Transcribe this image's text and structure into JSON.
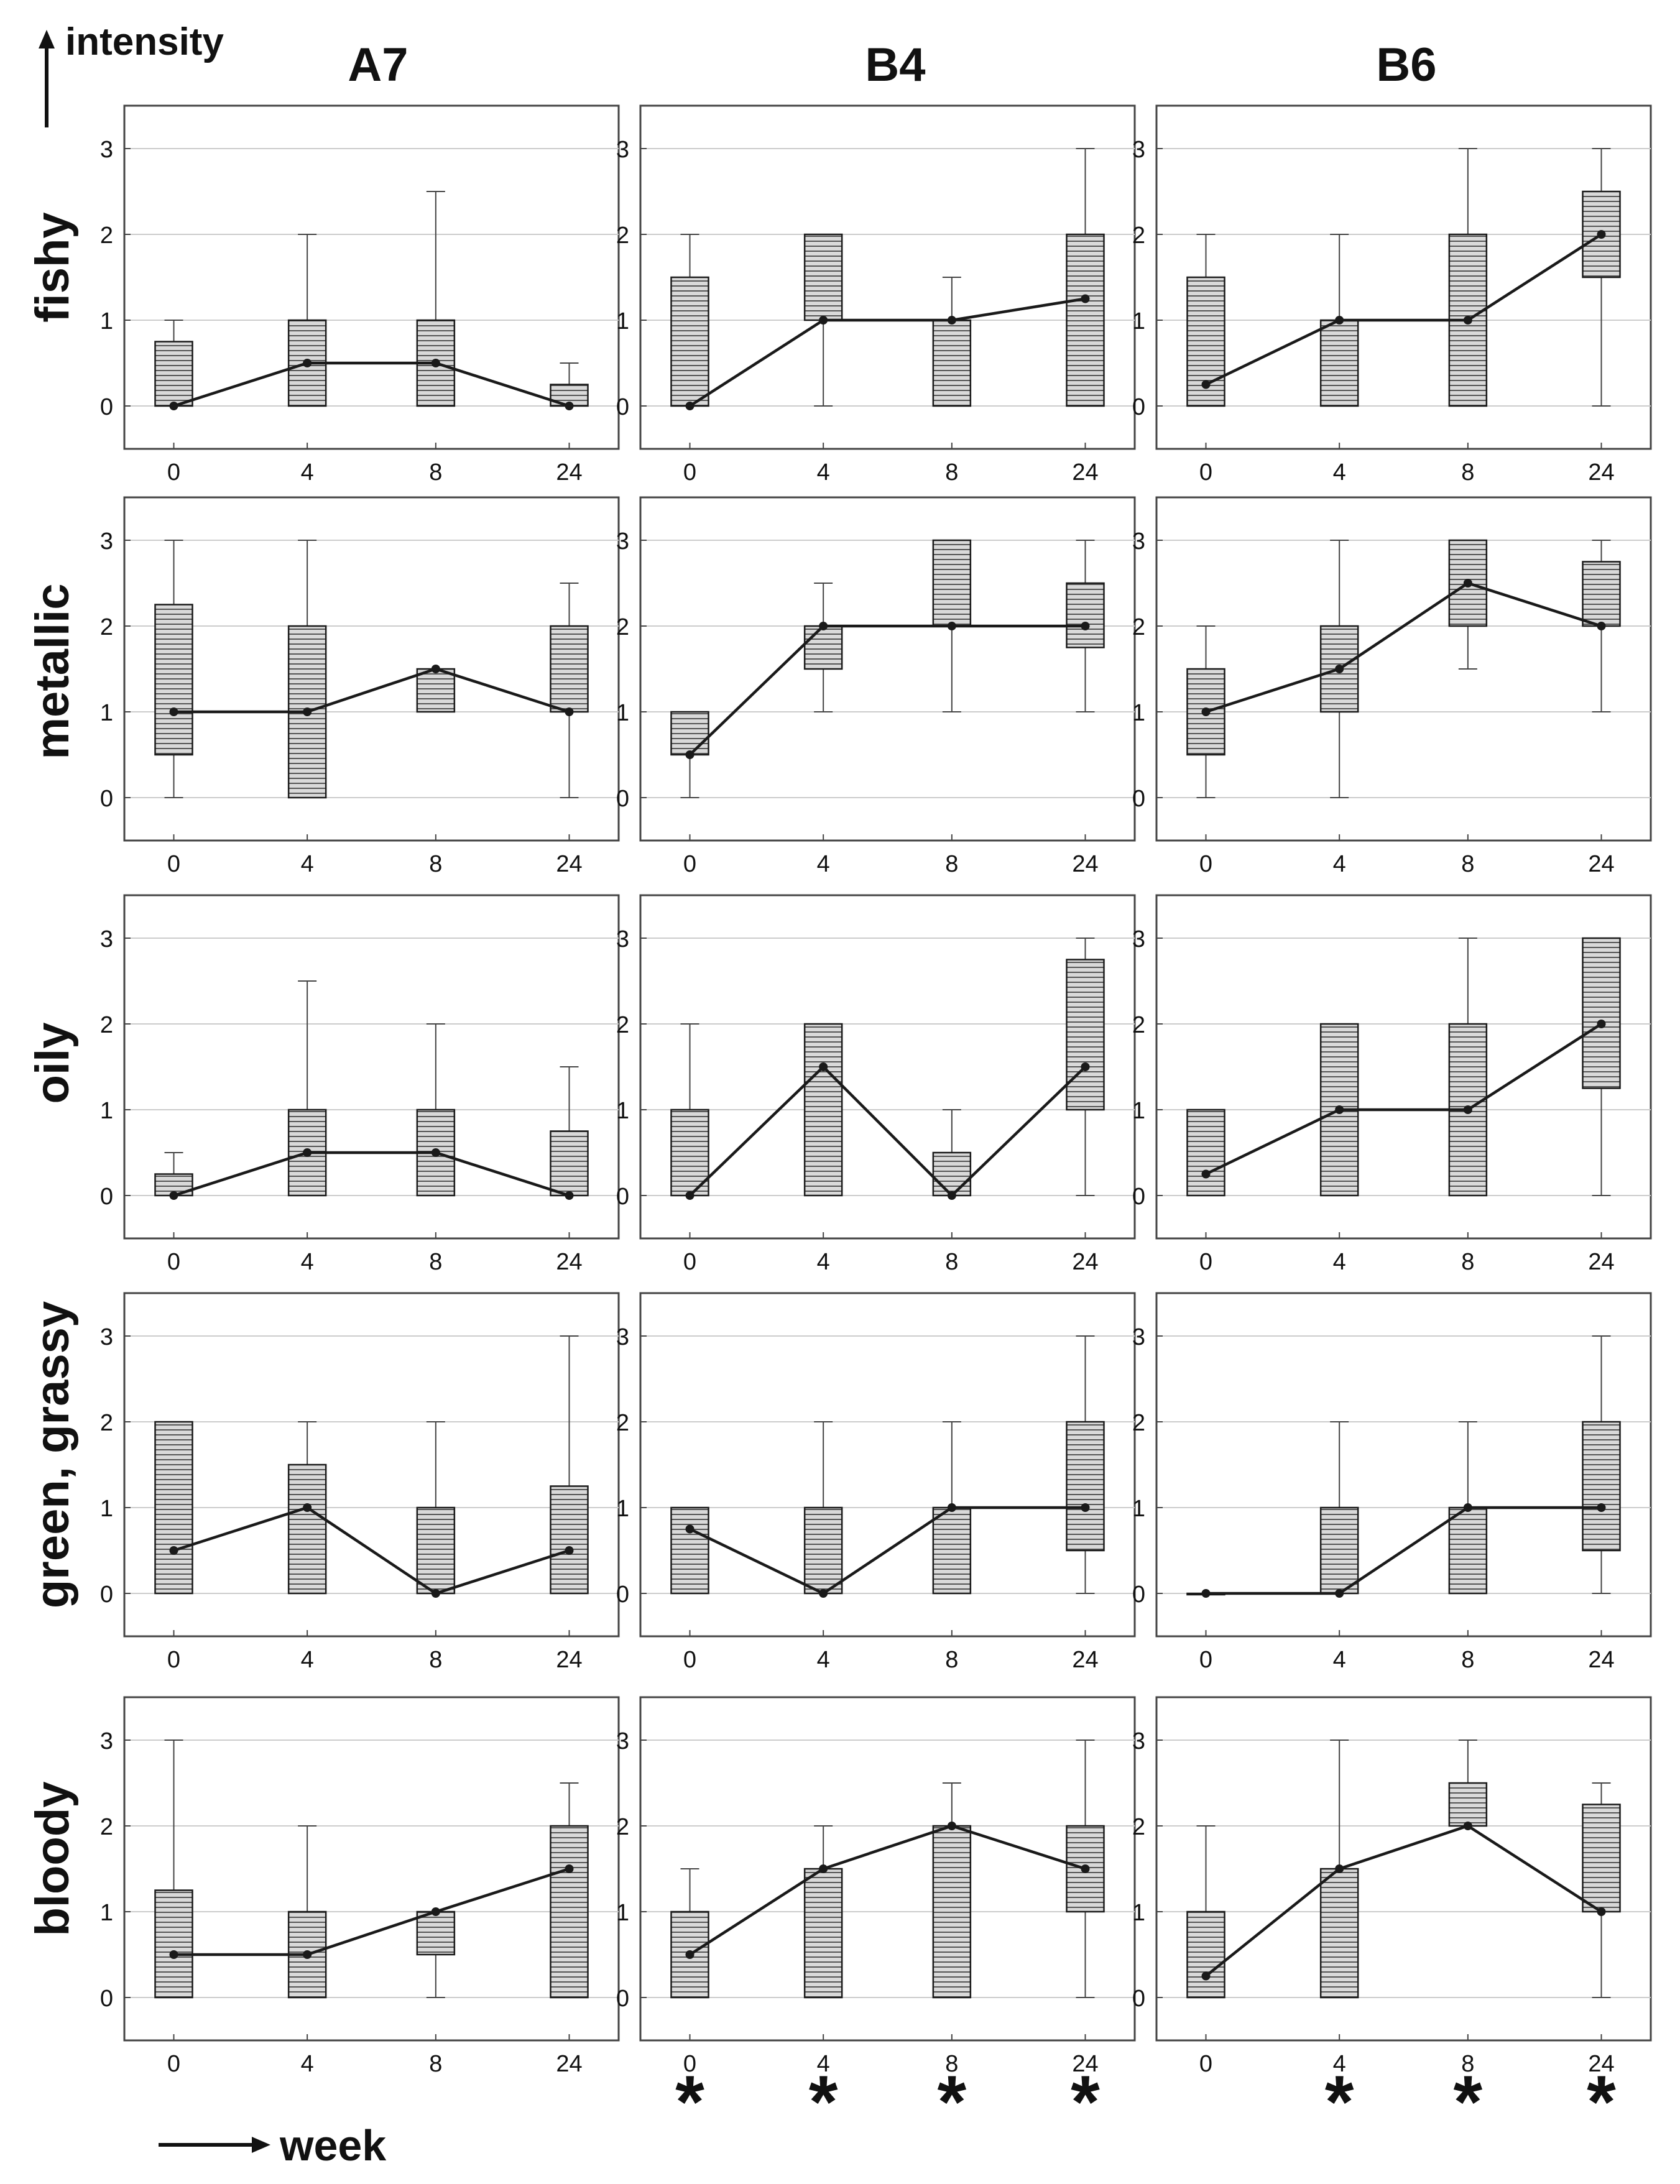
{
  "figure": {
    "y_axis_label": "intensity",
    "x_axis_label": "week",
    "significance_marker": "*"
  },
  "columns": [
    "A7",
    "B4",
    "B6"
  ],
  "rows": [
    "fishy",
    "metallic",
    "oily",
    "green, grassy",
    "bloody"
  ],
  "colors": {
    "frame": "#444444",
    "grid": "#cccccc",
    "box_fill": "#d9d9d9",
    "hatch": "#555555",
    "line": "#1a1a1a",
    "text": "#111111"
  },
  "chart_data": {
    "type": "box",
    "description_of_marks": "Each panel: boxes (quartiles), whiskers (min/max), dots joined by a line (median) per week",
    "categories": [
      "0",
      "4",
      "8",
      "24"
    ],
    "ylim": [
      -0.5,
      3.5
    ],
    "yticks": [
      0,
      1,
      2,
      3
    ],
    "xlabel": "week",
    "ylabel": "intensity",
    "panels": [
      {
        "row": "fishy",
        "column": "A7",
        "boxes": [
          {
            "week": "0",
            "q1": 0,
            "q3": 0.75,
            "min": 0,
            "max": 1,
            "median": 0
          },
          {
            "week": "4",
            "q1": 0,
            "q3": 1,
            "min": 0,
            "max": 2,
            "median": 0.5
          },
          {
            "week": "8",
            "q1": 0,
            "q3": 1,
            "min": 0,
            "max": 2.5,
            "median": 0.5
          },
          {
            "week": "24",
            "q1": 0,
            "q3": 0.25,
            "min": 0,
            "max": 0.5,
            "median": 0
          }
        ]
      },
      {
        "row": "fishy",
        "column": "B4",
        "boxes": [
          {
            "week": "0",
            "q1": 0,
            "q3": 1.5,
            "min": 0,
            "max": 2,
            "median": 0
          },
          {
            "week": "4",
            "q1": 1,
            "q3": 2,
            "min": 0,
            "max": 2,
            "median": 1
          },
          {
            "week": "8",
            "q1": 0,
            "q3": 1,
            "min": 0,
            "max": 1.5,
            "median": 1
          },
          {
            "week": "24",
            "q1": 0,
            "q3": 2,
            "min": 0,
            "max": 3,
            "median": 1.25
          }
        ]
      },
      {
        "row": "fishy",
        "column": "B6",
        "boxes": [
          {
            "week": "0",
            "q1": 0,
            "q3": 1.5,
            "min": 0,
            "max": 2,
            "median": 0.25
          },
          {
            "week": "4",
            "q1": 0,
            "q3": 1,
            "min": 0,
            "max": 2,
            "median": 1
          },
          {
            "week": "8",
            "q1": 0,
            "q3": 2,
            "min": 0,
            "max": 3,
            "median": 1
          },
          {
            "week": "24",
            "q1": 1.5,
            "q3": 2.5,
            "min": 0,
            "max": 3,
            "median": 2
          }
        ]
      },
      {
        "row": "metallic",
        "column": "A7",
        "boxes": [
          {
            "week": "0",
            "q1": 0.5,
            "q3": 2.25,
            "min": 0,
            "max": 3,
            "median": 1
          },
          {
            "week": "4",
            "q1": 0,
            "q3": 2,
            "min": 0,
            "max": 3,
            "median": 1
          },
          {
            "week": "8",
            "q1": 1,
            "q3": 1.5,
            "min": 1,
            "max": 1.5,
            "median": 1.5
          },
          {
            "week": "24",
            "q1": 1,
            "q3": 2,
            "min": 0,
            "max": 2.5,
            "median": 1
          }
        ]
      },
      {
        "row": "metallic",
        "column": "B4",
        "boxes": [
          {
            "week": "0",
            "q1": 0.5,
            "q3": 1,
            "min": 0,
            "max": 1,
            "median": 0.5
          },
          {
            "week": "4",
            "q1": 1.5,
            "q3": 2,
            "min": 1,
            "max": 2.5,
            "median": 2
          },
          {
            "week": "8",
            "q1": 2,
            "q3": 3,
            "min": 1,
            "max": 3,
            "median": 2
          },
          {
            "week": "24",
            "q1": 1.75,
            "q3": 2.5,
            "min": 1,
            "max": 3,
            "median": 2
          }
        ]
      },
      {
        "row": "metallic",
        "column": "B6",
        "boxes": [
          {
            "week": "0",
            "q1": 0.5,
            "q3": 1.5,
            "min": 0,
            "max": 2,
            "median": 1
          },
          {
            "week": "4",
            "q1": 1,
            "q3": 2,
            "min": 0,
            "max": 3,
            "median": 1.5
          },
          {
            "week": "8",
            "q1": 2,
            "q3": 3,
            "min": 1.5,
            "max": 3,
            "median": 2.5
          },
          {
            "week": "24",
            "q1": 2,
            "q3": 2.75,
            "min": 1,
            "max": 3,
            "median": 2
          }
        ]
      },
      {
        "row": "oily",
        "column": "A7",
        "boxes": [
          {
            "week": "0",
            "q1": 0,
            "q3": 0.25,
            "min": 0,
            "max": 0.5,
            "median": 0
          },
          {
            "week": "4",
            "q1": 0,
            "q3": 1,
            "min": 0,
            "max": 2.5,
            "median": 0.5
          },
          {
            "week": "8",
            "q1": 0,
            "q3": 1,
            "min": 0,
            "max": 2,
            "median": 0.5
          },
          {
            "week": "24",
            "q1": 0,
            "q3": 0.75,
            "min": 0,
            "max": 1.5,
            "median": 0
          }
        ]
      },
      {
        "row": "oily",
        "column": "B4",
        "boxes": [
          {
            "week": "0",
            "q1": 0,
            "q3": 1,
            "min": 0,
            "max": 2,
            "median": 0
          },
          {
            "week": "4",
            "q1": 0,
            "q3": 2,
            "min": 0,
            "max": 2,
            "median": 1.5
          },
          {
            "week": "8",
            "q1": 0,
            "q3": 0.5,
            "min": 0,
            "max": 1,
            "median": 0
          },
          {
            "week": "24",
            "q1": 1,
            "q3": 2.75,
            "min": 0,
            "max": 3,
            "median": 1.5
          }
        ]
      },
      {
        "row": "oily",
        "column": "B6",
        "boxes": [
          {
            "week": "0",
            "q1": 0,
            "q3": 1,
            "min": 0,
            "max": 1,
            "median": 0.25
          },
          {
            "week": "4",
            "q1": 0,
            "q3": 2,
            "min": 0,
            "max": 2,
            "median": 1
          },
          {
            "week": "8",
            "q1": 0,
            "q3": 2,
            "min": 0,
            "max": 3,
            "median": 1
          },
          {
            "week": "24",
            "q1": 1.25,
            "q3": 3,
            "min": 0,
            "max": 3,
            "median": 2
          }
        ]
      },
      {
        "row": "green, grassy",
        "column": "A7",
        "boxes": [
          {
            "week": "0",
            "q1": 0,
            "q3": 2,
            "min": 0,
            "max": 2,
            "median": 0.5
          },
          {
            "week": "4",
            "q1": 0,
            "q3": 1.5,
            "min": 0,
            "max": 2,
            "median": 1
          },
          {
            "week": "8",
            "q1": 0,
            "q3": 1,
            "min": 0,
            "max": 2,
            "median": 0
          },
          {
            "week": "24",
            "q1": 0,
            "q3": 1.25,
            "min": 0,
            "max": 3,
            "median": 0.5
          }
        ]
      },
      {
        "row": "green, grassy",
        "column": "B4",
        "boxes": [
          {
            "week": "0",
            "q1": 0,
            "q3": 1,
            "min": 0,
            "max": 1,
            "median": 0.75
          },
          {
            "week": "4",
            "q1": 0,
            "q3": 1,
            "min": 0,
            "max": 2,
            "median": 0
          },
          {
            "week": "8",
            "q1": 0,
            "q3": 1,
            "min": 0,
            "max": 2,
            "median": 1
          },
          {
            "week": "24",
            "q1": 0.5,
            "q3": 2,
            "min": 0,
            "max": 3,
            "median": 1
          }
        ]
      },
      {
        "row": "green, grassy",
        "column": "B6",
        "boxes": [
          {
            "week": "0",
            "q1": 0,
            "q3": 0,
            "min": 0,
            "max": 0,
            "median": 0
          },
          {
            "week": "4",
            "q1": 0,
            "q3": 1,
            "min": 0,
            "max": 2,
            "median": 0
          },
          {
            "week": "8",
            "q1": 0,
            "q3": 1,
            "min": 0,
            "max": 2,
            "median": 1
          },
          {
            "week": "24",
            "q1": 0.5,
            "q3": 2,
            "min": 0,
            "max": 3,
            "median": 1
          }
        ]
      },
      {
        "row": "bloody",
        "column": "A7",
        "boxes": [
          {
            "week": "0",
            "q1": 0,
            "q3": 1.25,
            "min": 0,
            "max": 3,
            "median": 0.5
          },
          {
            "week": "4",
            "q1": 0,
            "q3": 1,
            "min": 0,
            "max": 2,
            "median": 0.5
          },
          {
            "week": "8",
            "q1": 0.5,
            "q3": 1,
            "min": 0,
            "max": 1,
            "median": 1
          },
          {
            "week": "24",
            "q1": 0,
            "q3": 2,
            "min": 0,
            "max": 2.5,
            "median": 1.5
          }
        ]
      },
      {
        "row": "bloody",
        "column": "B4",
        "boxes": [
          {
            "week": "0",
            "q1": 0,
            "q3": 1,
            "min": 0,
            "max": 1.5,
            "median": 0.5
          },
          {
            "week": "4",
            "q1": 0,
            "q3": 1.5,
            "min": 0,
            "max": 2,
            "median": 1.5
          },
          {
            "week": "8",
            "q1": 0,
            "q3": 2,
            "min": 0,
            "max": 2.5,
            "median": 2
          },
          {
            "week": "24",
            "q1": 1,
            "q3": 2,
            "min": 0,
            "max": 3,
            "median": 1.5
          }
        ]
      },
      {
        "row": "bloody",
        "column": "B6",
        "boxes": [
          {
            "week": "0",
            "q1": 0,
            "q3": 1,
            "min": 0,
            "max": 2,
            "median": 0.25
          },
          {
            "week": "4",
            "q1": 0,
            "q3": 1.5,
            "min": 0,
            "max": 3,
            "median": 1.5
          },
          {
            "week": "8",
            "q1": 2,
            "q3": 2.5,
            "min": 2,
            "max": 3,
            "median": 2
          },
          {
            "week": "24",
            "q1": 1,
            "q3": 2.25,
            "min": 0,
            "max": 2.5,
            "median": 1
          }
        ]
      }
    ],
    "significance": [
      {
        "column": "B4",
        "weeks": [
          "0",
          "4",
          "8",
          "24"
        ]
      },
      {
        "column": "B6",
        "weeks": [
          "4",
          "8",
          "24"
        ]
      }
    ]
  }
}
